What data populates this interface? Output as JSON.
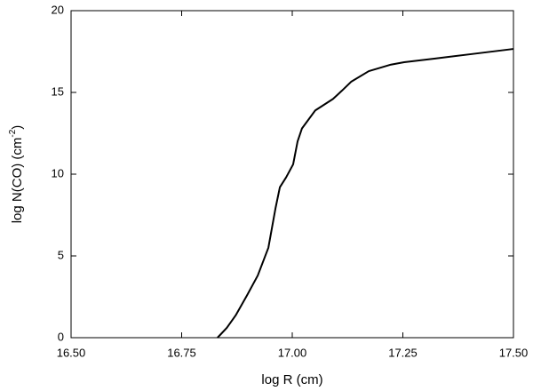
{
  "chart_data": {
    "type": "line",
    "xlabel": "log R (cm)",
    "ylabel": [
      "log N(CO) (cm",
      "-2",
      ")"
    ],
    "x": [
      16.831,
      16.852,
      16.872,
      16.898,
      16.922,
      16.946,
      16.962,
      16.972,
      16.986,
      17.002,
      17.012,
      17.022,
      17.052,
      17.092,
      17.112,
      17.133,
      17.173,
      17.223,
      17.253,
      17.323,
      17.404,
      17.5
    ],
    "series": [
      {
        "name": "N(CO)",
        "color": "#000000",
        "values": [
          0,
          0.6,
          1.36,
          2.6,
          3.8,
          5.5,
          7.9,
          9.2,
          9.8,
          10.6,
          12.0,
          12.8,
          13.9,
          14.6,
          15.1,
          15.65,
          16.3,
          16.7,
          16.85,
          17.07,
          17.34,
          17.66
        ]
      }
    ],
    "xlim": [
      16.5,
      17.5
    ],
    "xticks": [
      {
        "value": 16.5,
        "label": "16.50"
      },
      {
        "value": 16.75,
        "label": "16.75"
      },
      {
        "value": 17.0,
        "label": "17.00"
      },
      {
        "value": 17.25,
        "label": "17.25"
      },
      {
        "value": 17.5,
        "label": "17.50"
      }
    ],
    "ylim": [
      0,
      20
    ],
    "yticks": [
      0,
      5,
      10,
      15,
      20
    ],
    "grid": false
  }
}
